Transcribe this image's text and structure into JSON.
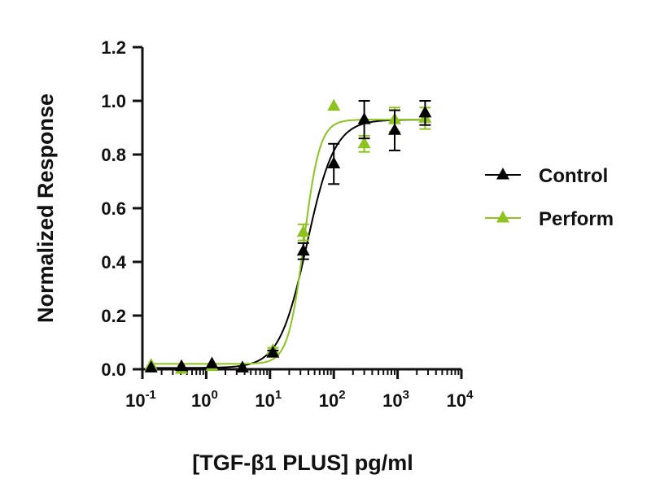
{
  "chart_data": {
    "type": "scatter",
    "xlabel": "[TGF-β1  PLUS] pg/ml",
    "ylabel": "Normalized Response",
    "x_scale": "log",
    "xlim_log10": [
      -1,
      4
    ],
    "x_ticks": [
      {
        "base": "10",
        "exp": "-1"
      },
      {
        "base": "10",
        "exp": "0"
      },
      {
        "base": "10",
        "exp": "1"
      },
      {
        "base": "10",
        "exp": "2"
      },
      {
        "base": "10",
        "exp": "3"
      },
      {
        "base": "10",
        "exp": "4"
      }
    ],
    "ylim": [
      0,
      1.2
    ],
    "y_ticks": [
      "0.0",
      "0.2",
      "0.4",
      "0.6",
      "0.8",
      "1.0",
      "1.2"
    ],
    "grid": false,
    "legend_position": "right",
    "series": [
      {
        "name": "Control",
        "color": "#000000",
        "marker": "triangle",
        "x": [
          0.137,
          0.41,
          1.23,
          3.7,
          11.1,
          33.3,
          100,
          300,
          900,
          2700
        ],
        "y": [
          0.005,
          0.01,
          0.02,
          0.005,
          0.06,
          0.44,
          0.765,
          0.93,
          0.89,
          0.955
        ],
        "err": [
          0,
          0,
          0,
          0,
          0.01,
          0.03,
          0.075,
          0.07,
          0.075,
          0.045
        ],
        "fit": {
          "bottom": 0.005,
          "top": 0.93,
          "ec50": 38.0,
          "hill": 2.0
        }
      },
      {
        "name": "Perform",
        "color": "#8dc21f",
        "marker": "triangle",
        "x": [
          0.137,
          0.41,
          1.23,
          3.7,
          11.1,
          33.3,
          100,
          300,
          900,
          2700
        ],
        "y": [
          0.015,
          0.0,
          0.01,
          0.005,
          0.07,
          0.51,
          0.98,
          0.84,
          0.93,
          0.935
        ],
        "err": [
          0,
          0,
          0,
          0,
          0.01,
          0.03,
          0.0,
          0.03,
          0.045,
          0.04
        ],
        "fit": {
          "bottom": 0.02,
          "top": 0.93,
          "ec50": 34.0,
          "hill": 3.5
        }
      }
    ]
  }
}
